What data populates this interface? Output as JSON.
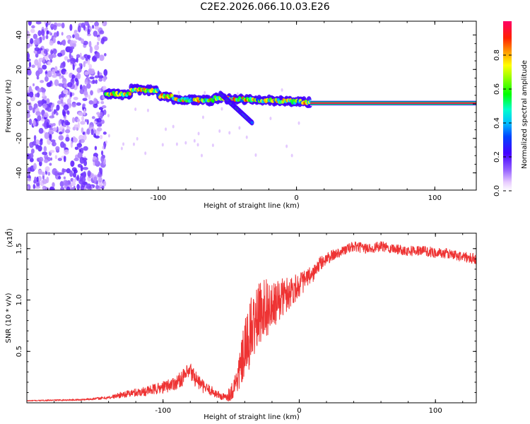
{
  "figure_title": "C2E2.2026.066.10.03.E26",
  "chart_data": [
    {
      "type": "heatmap",
      "title": "C2E2.2026.066.10.03.E26",
      "xlabel": "Height of straight line (km)",
      "ylabel": "Frequency (Hz)",
      "xlim": [
        -195,
        130
      ],
      "ylim": [
        -50,
        48
      ],
      "xticks": [
        -100,
        0,
        100
      ],
      "yticks": [
        -40,
        -20,
        0,
        20,
        40
      ],
      "grid": false,
      "colorbar": {
        "label": "Normalized spectral amplitude",
        "range": [
          0,
          1
        ],
        "ticks": [
          0.0,
          0.2,
          0.4,
          0.6,
          0.8
        ],
        "colormap": [
          "#ffffff",
          "#cc88ff",
          "#7700ff",
          "#0000ff",
          "#00bfff",
          "#00ffcc",
          "#00ff00",
          "#ffff00",
          "#ff8800",
          "#ff0000",
          "#ff0066"
        ]
      },
      "regions": [
        {
          "description": "broadband noise",
          "x_range": [
            -195,
            -138
          ],
          "freq_range": [
            -50,
            48
          ],
          "amplitude": [
            0.05,
            0.2
          ]
        },
        {
          "description": "drifting signal track",
          "x_range": [
            -138,
            10
          ],
          "freq_start": 6,
          "freq_end": 1,
          "amplitude": [
            0.3,
            0.9
          ]
        },
        {
          "description": "secondary branch",
          "x_range": [
            -55,
            -32
          ],
          "freq_start": 6,
          "freq_end": -11,
          "amplitude": [
            0.2,
            0.6
          ]
        },
        {
          "description": "stable carrier",
          "x_range": [
            10,
            130
          ],
          "freq": 0.5,
          "amplitude": 1.0
        }
      ]
    },
    {
      "type": "line",
      "title": "",
      "xlabel": "Height of straight line (km)",
      "ylabel": "SNR (10 * v/v)",
      "y_multiplier_label": "(x10",
      "y_multiplier_exp": "4",
      "xlim": [
        -200,
        130
      ],
      "ylim": [
        0,
        1.65
      ],
      "xticks": [
        -100,
        0,
        100
      ],
      "yticks": [
        0.5,
        1.0,
        1.5
      ],
      "ytick_labels": [
        "0.5",
        "1.0",
        "1.5"
      ],
      "grid": false,
      "color": "#ee3333",
      "series": [
        {
          "name": "SNR",
          "x": [
            -200,
            -160,
            -140,
            -130,
            -120,
            -110,
            -100,
            -90,
            -85,
            -80,
            -75,
            -70,
            -65,
            -60,
            -55,
            -50,
            -45,
            -40,
            -35,
            -30,
            -25,
            -20,
            -15,
            -10,
            -5,
            0,
            5,
            10,
            15,
            20,
            30,
            40,
            50,
            60,
            70,
            80,
            90,
            100,
            110,
            120,
            130
          ],
          "values": [
            0.02,
            0.03,
            0.05,
            0.08,
            0.1,
            0.12,
            0.15,
            0.2,
            0.25,
            0.3,
            0.22,
            0.15,
            0.12,
            0.08,
            0.05,
            0.1,
            0.25,
            0.5,
            0.7,
            0.85,
            0.95,
            0.9,
            1.0,
            1.05,
            1.1,
            1.15,
            1.2,
            1.25,
            1.35,
            1.4,
            1.47,
            1.52,
            1.5,
            1.52,
            1.5,
            1.48,
            1.48,
            1.46,
            1.45,
            1.42,
            1.4
          ],
          "noise": [
            0.005,
            0.008,
            0.015,
            0.03,
            0.04,
            0.05,
            0.06,
            0.07,
            0.08,
            0.1,
            0.08,
            0.06,
            0.05,
            0.04,
            0.04,
            0.08,
            0.15,
            0.3,
            0.35,
            0.3,
            0.3,
            0.25,
            0.2,
            0.18,
            0.15,
            0.12,
            0.1,
            0.08,
            0.07,
            0.06,
            0.05,
            0.05,
            0.05,
            0.05,
            0.05,
            0.05,
            0.05,
            0.05,
            0.05,
            0.05,
            0.05
          ]
        }
      ]
    }
  ]
}
